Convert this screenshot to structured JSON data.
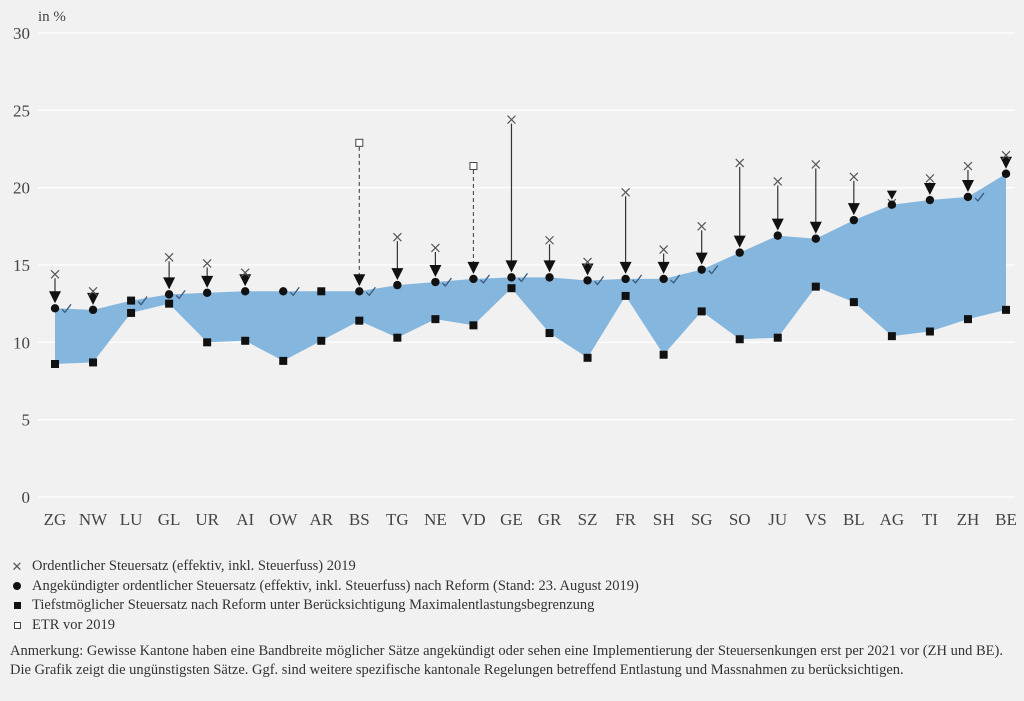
{
  "chart_data": {
    "type": "range-band",
    "unit_label": "in %",
    "ylim": [
      0,
      30
    ],
    "yticks": [
      0,
      5,
      10,
      15,
      20,
      25,
      30
    ],
    "grid": true,
    "categories": [
      "ZG",
      "NW",
      "LU",
      "GL",
      "UR",
      "AI",
      "OW",
      "AR",
      "BS",
      "TG",
      "NE",
      "VD",
      "GE",
      "GR",
      "SZ",
      "FR",
      "SH",
      "SG",
      "SO",
      "JU",
      "VS",
      "BL",
      "AG",
      "TI",
      "ZH",
      "BE"
    ],
    "series": [
      {
        "name": "Ordentlicher Steuersatz (effektiv, inkl. Steuerfuss) 2019",
        "marker": "cross",
        "values": [
          14.4,
          13.3,
          null,
          15.5,
          15.1,
          14.5,
          null,
          null,
          null,
          16.8,
          16.1,
          null,
          24.4,
          16.6,
          15.2,
          19.7,
          16.0,
          17.5,
          21.6,
          20.4,
          21.5,
          20.7,
          19.0,
          20.6,
          21.4,
          22.1
        ]
      },
      {
        "name": "Angekündigter ordentlicher Steuersatz (effektiv, inkl. Steuerfuss) nach Reform (Stand: 23. August 2019)",
        "marker": "circle",
        "values": [
          12.2,
          12.1,
          12.7,
          13.1,
          13.2,
          13.3,
          13.3,
          13.3,
          13.3,
          13.7,
          13.9,
          14.1,
          14.2,
          14.2,
          14.0,
          14.1,
          14.1,
          14.7,
          15.8,
          16.9,
          16.7,
          17.9,
          18.9,
          19.2,
          19.4,
          20.9
        ]
      },
      {
        "name": "Tiefstmöglicher Steuersatz nach Reform unter Berücksichtigung Maximalentlastungsbegrenzung",
        "marker": "square",
        "values": [
          8.6,
          8.7,
          11.9,
          12.5,
          10.0,
          10.1,
          8.8,
          10.1,
          11.4,
          10.3,
          11.5,
          11.1,
          13.5,
          10.6,
          9.0,
          13.0,
          9.2,
          12.0,
          10.2,
          10.3,
          13.6,
          12.6,
          10.4,
          10.7,
          11.5,
          12.1
        ]
      },
      {
        "name": "ETR vor 2019",
        "marker": "open-square",
        "values": [
          null,
          null,
          null,
          null,
          null,
          null,
          null,
          null,
          22.9,
          null,
          null,
          21.4,
          null,
          null,
          null,
          null,
          null,
          null,
          null,
          null,
          null,
          null,
          null,
          null,
          null,
          null
        ]
      }
    ],
    "square_at_top": [
      "LU",
      "AR"
    ],
    "checkmarks": [
      "ZG",
      "LU",
      "GL",
      "OW",
      "BS",
      "NE",
      "VD",
      "GE",
      "SZ",
      "FR",
      "SH",
      "SG",
      "ZH"
    ],
    "band_color": "#85b6de"
  },
  "legend": [
    {
      "symbol": "×",
      "label": "Ordentlicher Steuersatz (effektiv, inkl. Steuerfuss) 2019"
    },
    {
      "symbol": "●",
      "label": "Angekündigter ordentlicher Steuersatz (effektiv, inkl. Steuerfuss) nach Reform (Stand: 23. August 2019)"
    },
    {
      "symbol": "■",
      "label": "Tiefstmöglicher Steuersatz nach Reform unter Berücksichtigung Maximalentlastungsbegrenzung"
    },
    {
      "symbol": "□",
      "label": "ETR vor 2019"
    }
  ],
  "note": "Anmerkung: Gewisse Kantone haben eine Bandbreite möglicher Sätze angekündigt oder sehen eine Implementierung der Steuersenkungen erst per 2021 vor (ZH und BE). Die Grafik zeigt die ungünstigsten Sätze. Ggf. sind weitere spezifische kantonale Regelungen betreffend Entlastung und Massnahmen zu berücksichtigen."
}
